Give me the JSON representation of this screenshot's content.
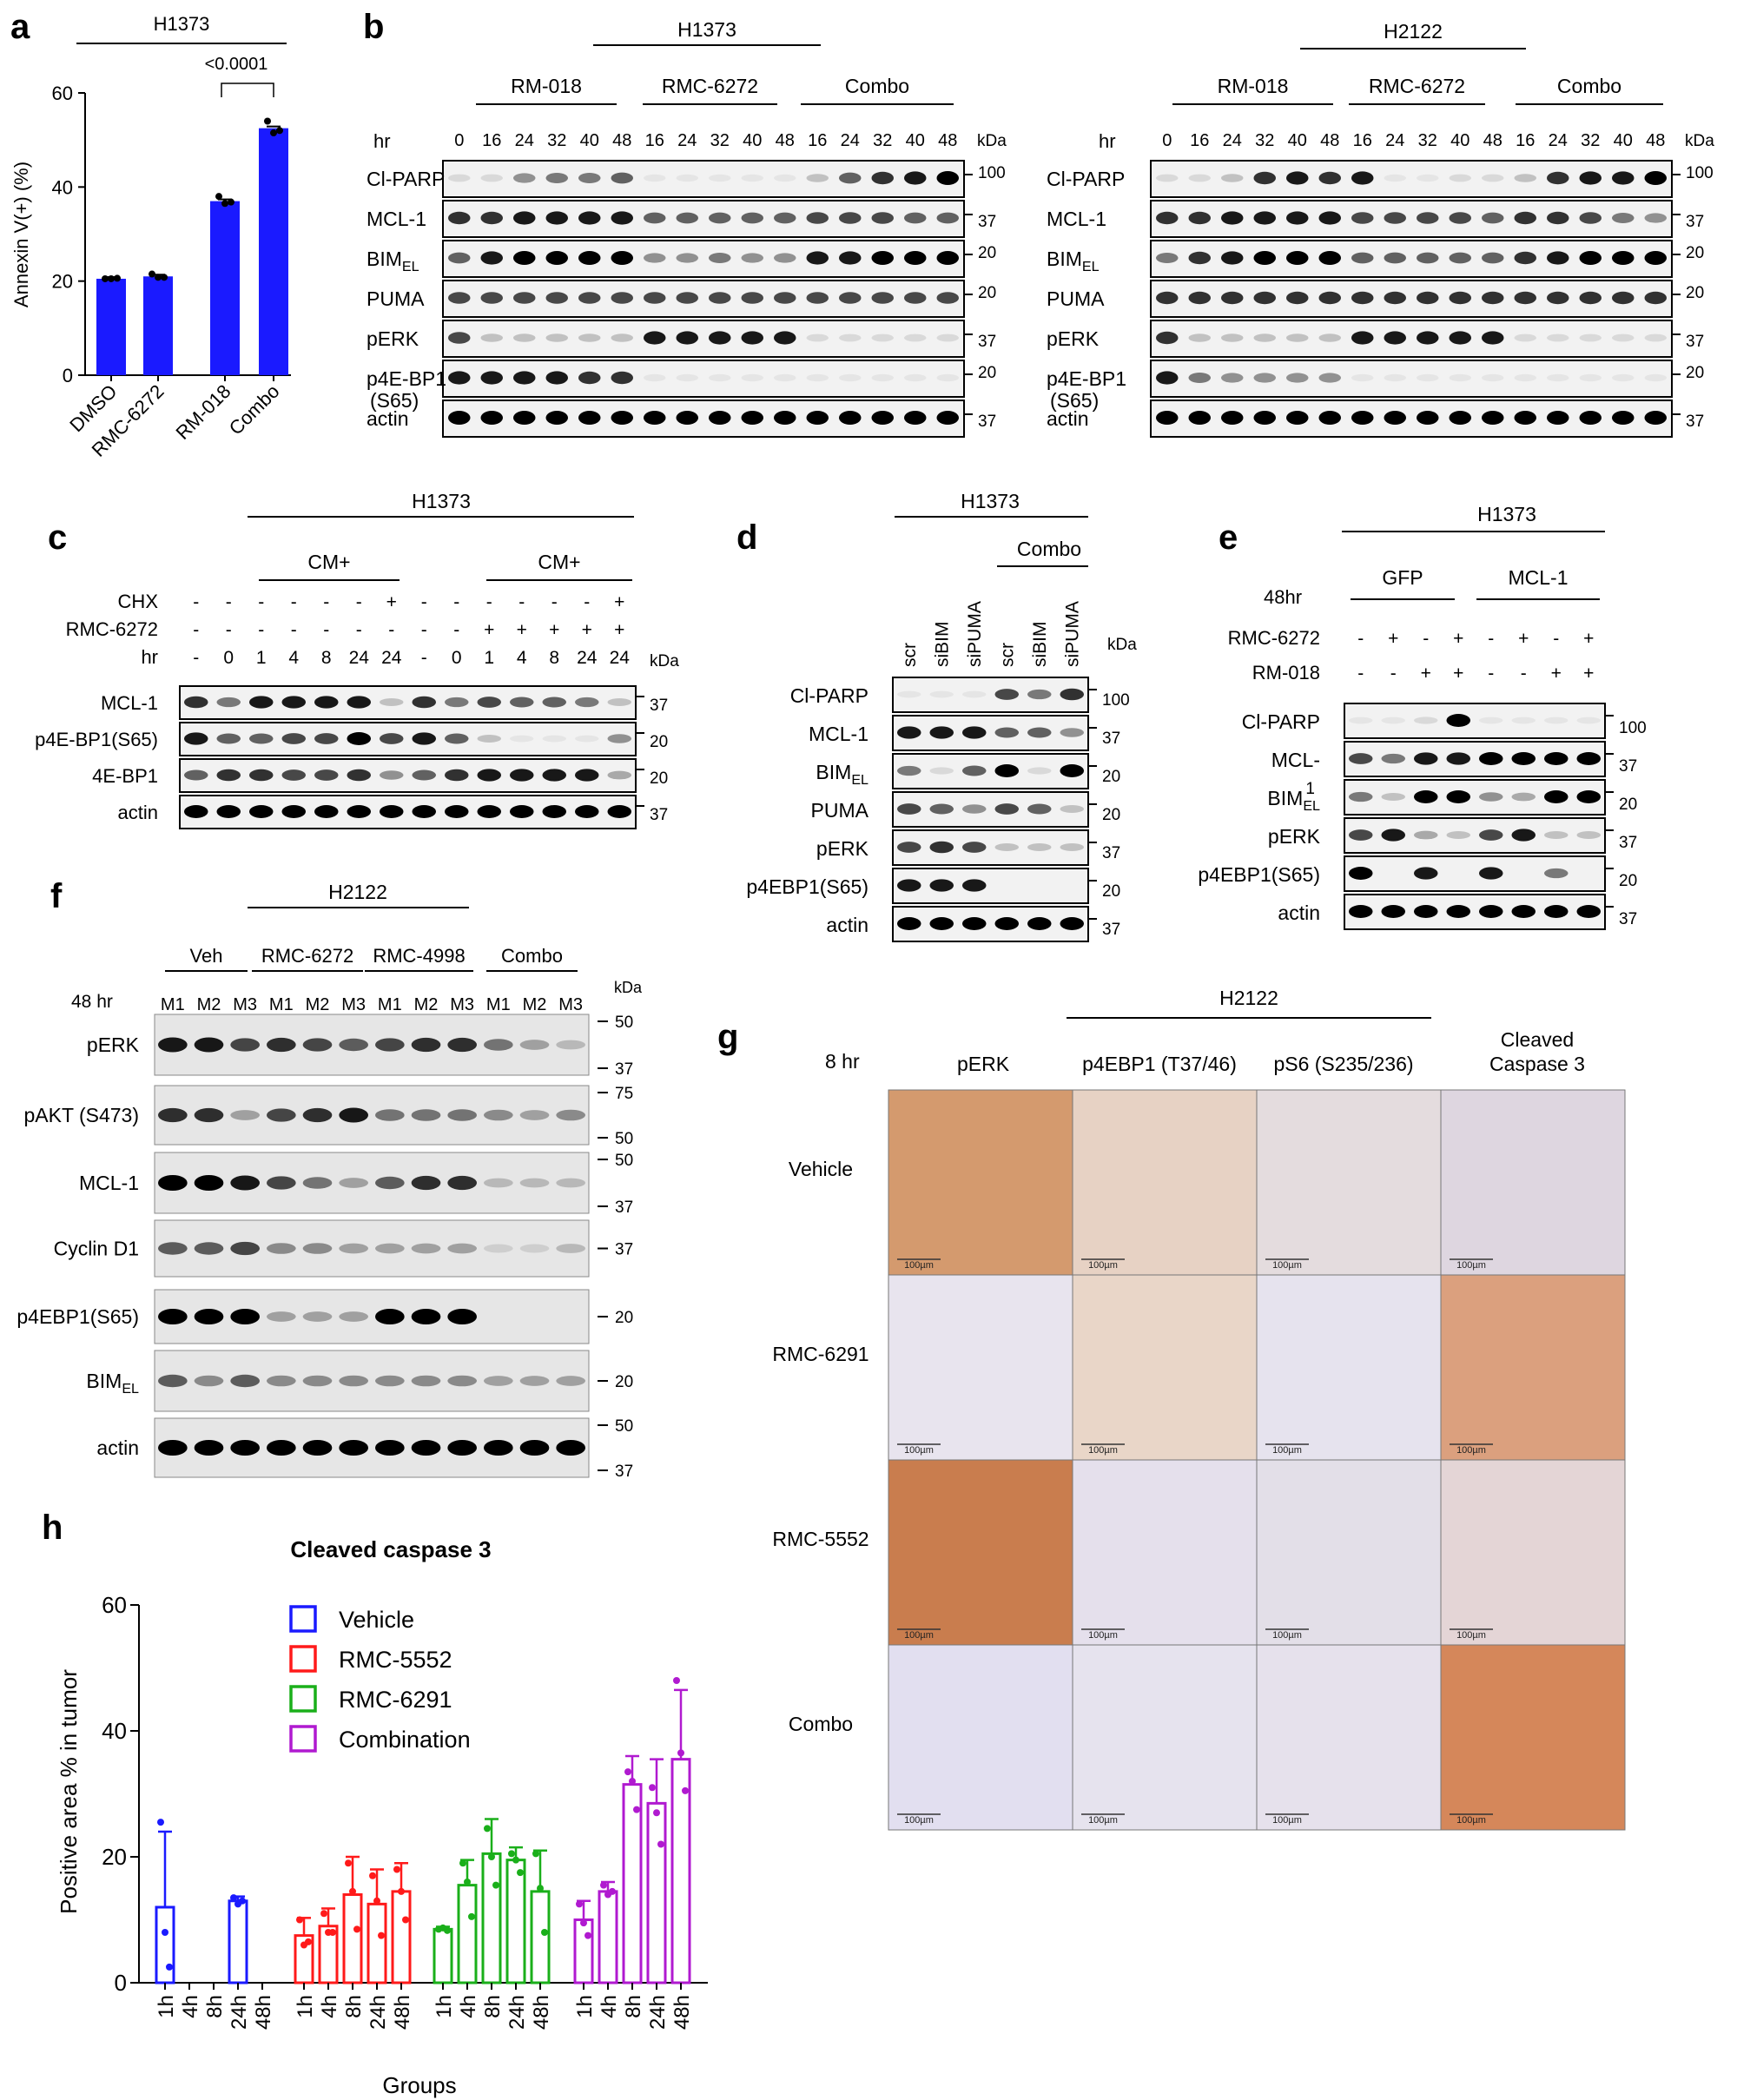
{
  "panels": {
    "a": {
      "letter": "a",
      "cell_line": "H1373",
      "ylabel": "Annexin V(+) (%)",
      "yticks": [
        "0",
        "20",
        "40",
        "60"
      ],
      "pvalue": "<0.0001",
      "bar_color": "#1a1aff",
      "chart_data": {
        "type": "bar",
        "categories": [
          "DMSO",
          "RMC-6272",
          "RM-018",
          "Combo"
        ],
        "values": [
          20.5,
          21,
          37,
          52.5
        ],
        "ylim": [
          0,
          60
        ],
        "ylabel": "Annexin V(+) (%)",
        "points": [
          [
            20.5,
            20.5,
            20.6
          ],
          [
            21.5,
            20.8,
            20.8
          ],
          [
            38,
            36.5,
            36.8
          ],
          [
            54,
            51.5,
            52
          ]
        ]
      }
    },
    "b": {
      "letter": "b",
      "blots": [
        {
          "cell_line": "H1373",
          "groups": [
            "RM-018",
            "RMC-6272",
            "Combo"
          ],
          "hr_label": "hr",
          "timepoints": [
            "0",
            "16",
            "24",
            "32",
            "40",
            "48",
            "16",
            "24",
            "32",
            "40",
            "48",
            "16",
            "24",
            "32",
            "40",
            "48"
          ],
          "kda_label": "kDa",
          "rows": [
            {
              "label": "Cl-PARP",
              "marker": "100"
            },
            {
              "label": "MCL-1",
              "marker": "37"
            },
            {
              "label": "BIM",
              "sub": "EL",
              "marker": "20"
            },
            {
              "label": "PUMA",
              "marker": "20"
            },
            {
              "label": "pERK",
              "marker": "37"
            },
            {
              "label": "p4E-BP1",
              "label2": "(S65)",
              "marker": "20"
            },
            {
              "label": "actin",
              "marker": "37"
            }
          ]
        },
        {
          "cell_line": "H2122",
          "groups": [
            "RM-018",
            "RMC-6272",
            "Combo"
          ],
          "hr_label": "hr",
          "timepoints": [
            "0",
            "16",
            "24",
            "32",
            "40",
            "48",
            "16",
            "24",
            "32",
            "40",
            "48",
            "16",
            "24",
            "32",
            "40",
            "48"
          ],
          "kda_label": "kDa",
          "rows": [
            {
              "label": "Cl-PARP",
              "marker": "100"
            },
            {
              "label": "MCL-1",
              "marker": "37"
            },
            {
              "label": "BIM",
              "sub": "EL",
              "marker": "20"
            },
            {
              "label": "PUMA",
              "marker": "20"
            },
            {
              "label": "pERK",
              "marker": "37"
            },
            {
              "label": "p4E-BP1",
              "label2": "(S65)",
              "marker": "20"
            },
            {
              "label": "actin",
              "marker": "37"
            }
          ]
        }
      ]
    },
    "c": {
      "letter": "c",
      "cell_line": "H1373",
      "group_label": "CM+",
      "row_labels": [
        "CHX",
        "RMC-6272",
        "hr"
      ],
      "chx": [
        "-",
        "-",
        "-",
        "-",
        "-",
        "-",
        "+",
        "-",
        "-",
        "-",
        "-",
        "-",
        "-",
        "+"
      ],
      "rmc": [
        "-",
        "-",
        "-",
        "-",
        "-",
        "-",
        "-",
        "-",
        "-",
        "+",
        "+",
        "+",
        "+",
        "+"
      ],
      "hr": [
        "-",
        "0",
        "1",
        "4",
        "8",
        "24",
        "24",
        "-",
        "0",
        "1",
        "4",
        "8",
        "24",
        "24"
      ],
      "kda_label": "kDa",
      "rows": [
        {
          "label": "MCL-1",
          "marker": "37"
        },
        {
          "label": "p4E-BP1(S65)",
          "marker": "20"
        },
        {
          "label": "4E-BP1",
          "marker": "20"
        },
        {
          "label": "actin",
          "marker": "37"
        }
      ]
    },
    "d": {
      "letter": "d",
      "cell_line": "H1373",
      "group_label": "Combo",
      "lanes": [
        "scr",
        "siBIM",
        "siPUMA",
        "scr",
        "siBIM",
        "siPUMA"
      ],
      "kda_label": "kDa",
      "rows": [
        {
          "label": "Cl-PARP",
          "marker": "100"
        },
        {
          "label": "MCL-1",
          "marker": "37"
        },
        {
          "label": "BIM",
          "sub": "EL",
          "marker": "20"
        },
        {
          "label": "PUMA",
          "marker": "20"
        },
        {
          "label": "pERK",
          "marker": "37"
        },
        {
          "label": "p4EBP1(S65)",
          "marker": "20"
        },
        {
          "label": "actin",
          "marker": "37"
        }
      ]
    },
    "e": {
      "letter": "e",
      "cell_line": "H1373",
      "time": "48hr",
      "groups": [
        "GFP",
        "MCL-1"
      ],
      "row_labels": [
        "RMC-6272",
        "RM-018"
      ],
      "rmc": [
        "-",
        "+",
        "-",
        "+",
        "-",
        "+",
        "-",
        "+"
      ],
      "rm018": [
        "-",
        "-",
        "+",
        "+",
        "-",
        "-",
        "+",
        "+"
      ],
      "rows": [
        {
          "label": "Cl-PARP",
          "marker": "100"
        },
        {
          "label": "MCL-",
          "marker": "37"
        },
        {
          "label": "BIM",
          "sub": "EL",
          "sup": "1",
          "marker": "20"
        },
        {
          "label": "pERK",
          "marker": "37"
        },
        {
          "label": "p4EBP1(S65)",
          "marker": "20"
        },
        {
          "label": "actin",
          "marker": "37"
        }
      ]
    },
    "f": {
      "letter": "f",
      "cell_line": "H2122",
      "groups": [
        "Veh",
        "RMC-6272",
        "RMC-4998",
        "Combo"
      ],
      "time": "48 hr",
      "lanes": [
        "M1",
        "M2",
        "M3",
        "M1",
        "M2",
        "M3",
        "M1",
        "M2",
        "M3",
        "M1",
        "M2",
        "M3"
      ],
      "kda_label": "kDa",
      "rows": [
        {
          "label": "pERK",
          "markers": [
            "50",
            "37"
          ]
        },
        {
          "label": "pAKT (S473)",
          "markers": [
            "75",
            "50"
          ]
        },
        {
          "label": "MCL-1",
          "markers": [
            "50",
            "37"
          ]
        },
        {
          "label": "Cyclin D1",
          "markers": [
            "37"
          ]
        },
        {
          "label": "p4EBP1(S65)",
          "markers": [
            "20"
          ]
        },
        {
          "label": "BIM",
          "sub": "EL",
          "markers": [
            "20"
          ]
        },
        {
          "label": "actin",
          "markers": [
            "50",
            "37"
          ]
        }
      ]
    },
    "g": {
      "letter": "g",
      "cell_line": "H2122",
      "time": "8 hr",
      "columns": [
        "pERK",
        "p4EBP1 (T37/46)",
        "pS6 (S235/236)",
        "Cleaved",
        "Caspase 3"
      ],
      "rows": [
        "Vehicle",
        "RMC-6291",
        "RMC-5552",
        "Combo"
      ],
      "scale_bar": "100µm"
    },
    "h": {
      "letter": "h",
      "title": "Cleaved caspase 3",
      "ylabel": "Positive area % in tumor",
      "xlabel": "Groups",
      "yticks": [
        "0",
        "20",
        "40",
        "60"
      ],
      "legend": [
        "Vehicle",
        "RMC-5552",
        "RMC-6291",
        "Combination"
      ],
      "colors": [
        "#1a1aff",
        "#ff1a1a",
        "#1aaf1a",
        "#b01ad0"
      ],
      "chart_data": {
        "type": "bar",
        "categories": [
          "1h",
          "4h",
          "8h",
          "24h",
          "48h"
        ],
        "ylim": [
          0,
          60
        ],
        "ylabel": "Positive area % in tumor",
        "xlabel": "Groups",
        "title": "Cleaved caspase 3",
        "series": [
          {
            "name": "Vehicle",
            "values": [
              12,
              0,
              0,
              13,
              0
            ],
            "err": [
              12,
              0,
              0,
              0.7,
              0
            ],
            "points": [
              [
                25.5,
                8,
                2.5
              ],
              [],
              [],
              [
                13.5,
                12.5,
                13
              ],
              []
            ]
          },
          {
            "name": "RMC-5552",
            "values": [
              7.5,
              9,
              14,
              12.5,
              14.5
            ],
            "err": [
              2.8,
              2.8,
              6,
              5.5,
              4.5
            ],
            "points": [
              [
                10,
                6,
                6.5
              ],
              [
                11,
                8,
                8
              ],
              [
                19,
                14.5,
                8.5
              ],
              [
                17,
                13,
                7.5
              ],
              [
                18,
                14.5,
                10
              ]
            ]
          },
          {
            "name": "RMC-6291",
            "values": [
              8.5,
              15.5,
              20.5,
              19.5,
              14.5
            ],
            "err": [
              0.4,
              4,
              5.5,
              2,
              6.5
            ],
            "points": [
              [
                8.5,
                8.7,
                8.3
              ],
              [
                19,
                16,
                10.5
              ],
              [
                24.5,
                20,
                15.5
              ],
              [
                20.5,
                19.5,
                17.5
              ],
              [
                20.5,
                15,
                8
              ]
            ]
          },
          {
            "name": "Combination",
            "values": [
              10,
              14.5,
              31.5,
              28.5,
              35.5
            ],
            "err": [
              3,
              1.5,
              4.5,
              7,
              11
            ],
            "points": [
              [
                12.5,
                9.5,
                7.5
              ],
              [
                15.5,
                14,
                14.5
              ],
              [
                33.5,
                32,
                27.5
              ],
              [
                31,
                27,
                22
              ],
              [
                48,
                36.5,
                30.5
              ]
            ]
          }
        ]
      }
    }
  }
}
